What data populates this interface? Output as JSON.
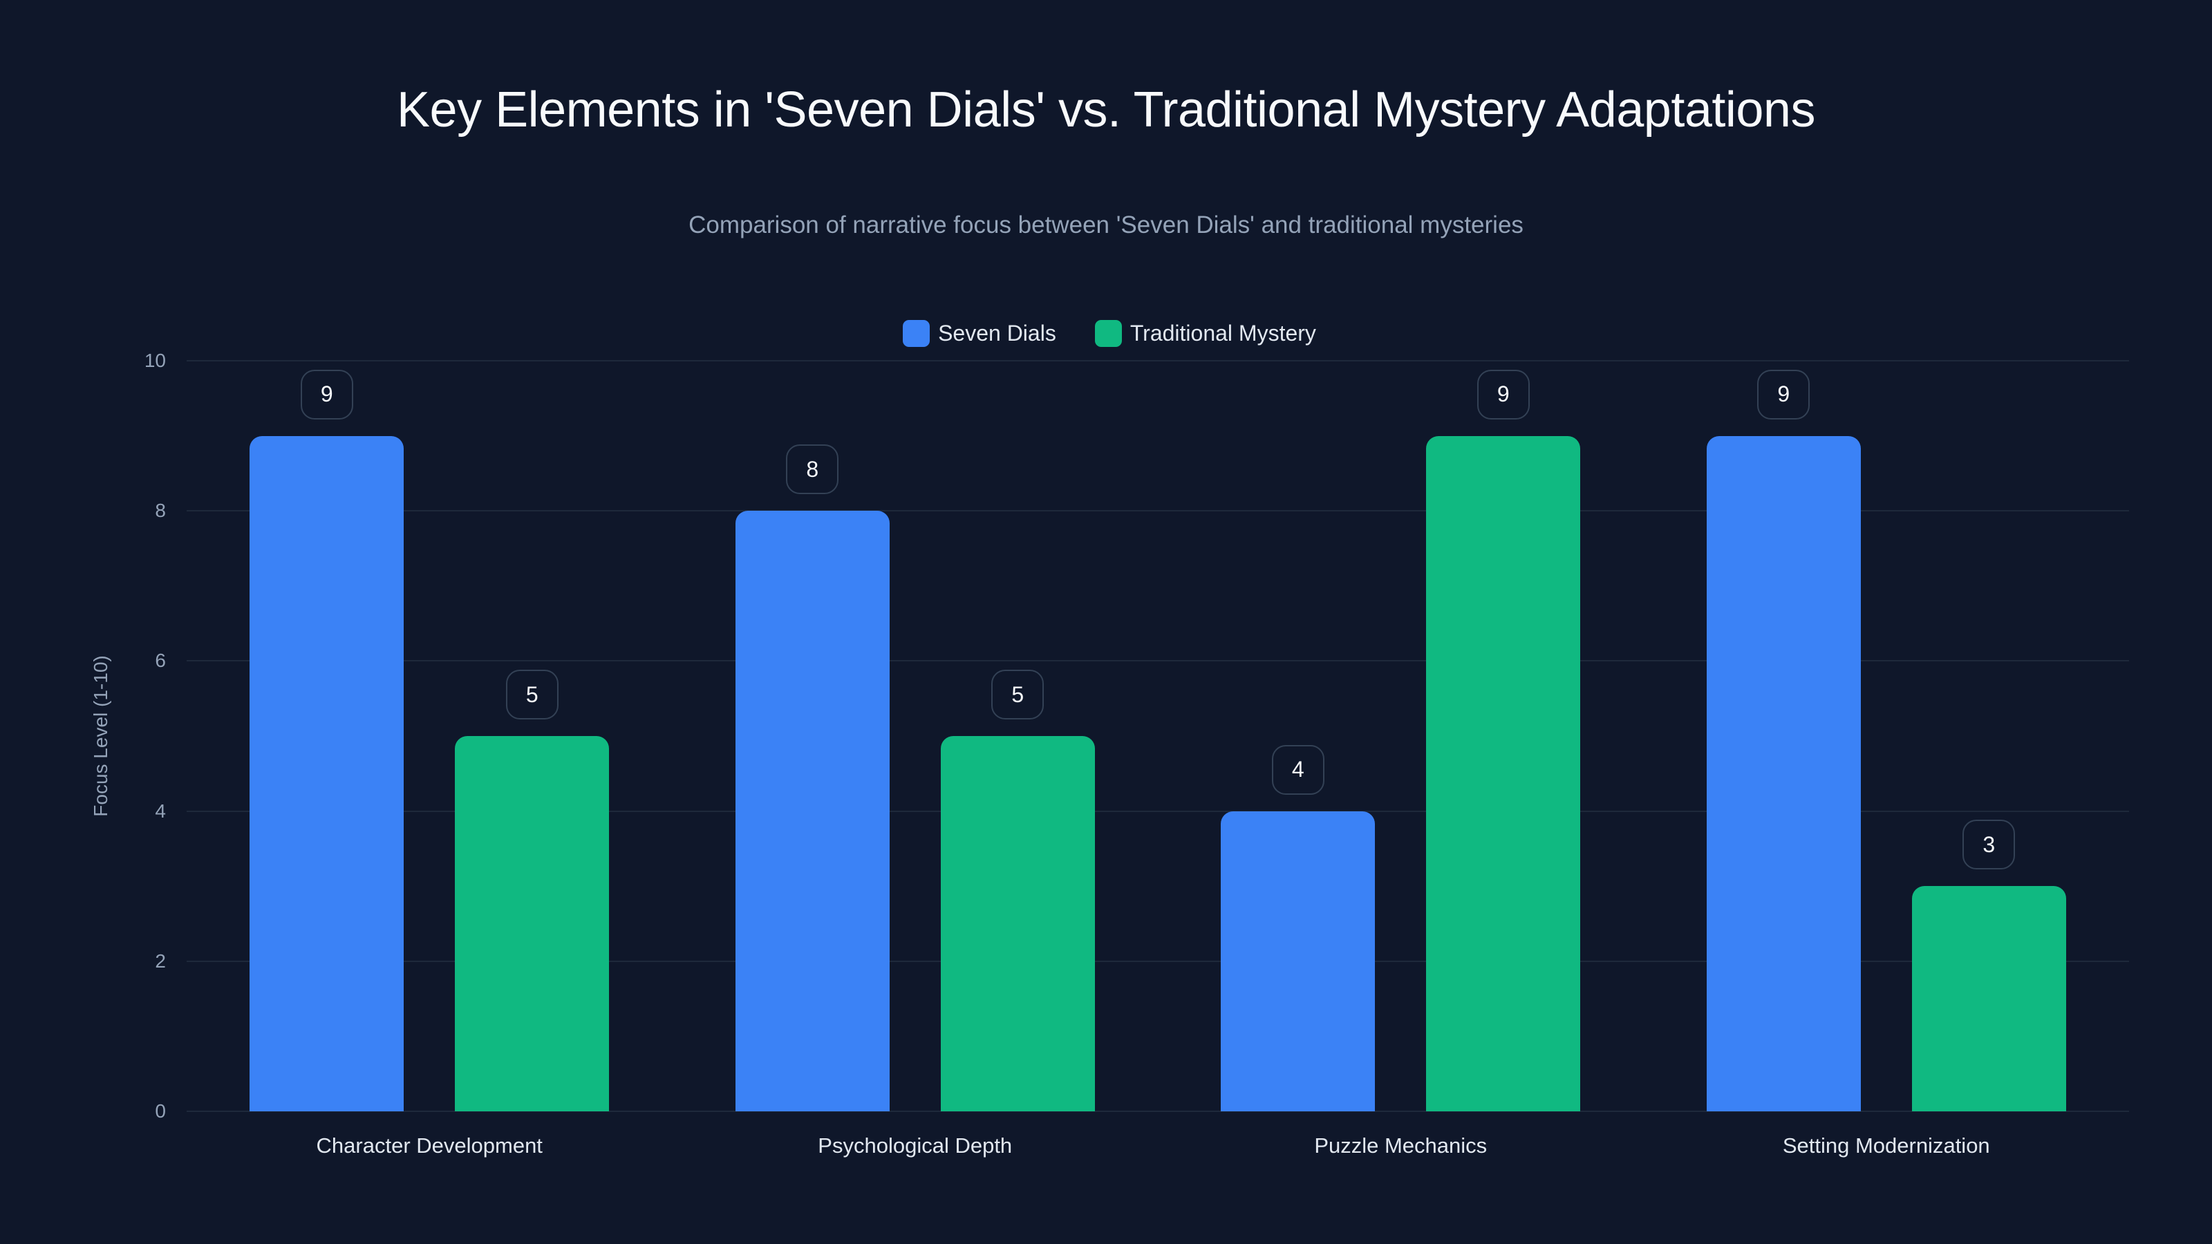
{
  "header": {
    "title": "Key Elements in 'Seven Dials' vs. Traditional Mystery Adaptations",
    "subtitle": "Comparison of narrative focus between 'Seven Dials' and traditional mysteries"
  },
  "legend": [
    {
      "label": "Seven Dials",
      "color": "#3b82f6"
    },
    {
      "label": "Traditional Mystery",
      "color": "#10b981"
    }
  ],
  "axes": {
    "ylabel": "Focus Level (1-10)",
    "yticks": [
      "0",
      "2",
      "4",
      "6",
      "8",
      "10"
    ],
    "xticks": [
      "Character Development",
      "Psychological Depth",
      "Puzzle Mechanics",
      "Setting Modernization"
    ]
  },
  "chart_data": {
    "type": "bar",
    "title": "Key Elements in 'Seven Dials' vs. Traditional Mystery Adaptations",
    "subtitle": "Comparison of narrative focus between 'Seven Dials' and traditional mysteries",
    "categories": [
      "Character Development",
      "Psychological Depth",
      "Puzzle Mechanics",
      "Setting Modernization"
    ],
    "series": [
      {
        "name": "Seven Dials",
        "color": "#3b82f6",
        "values": [
          9,
          8,
          4,
          9
        ]
      },
      {
        "name": "Traditional Mystery",
        "color": "#10b981",
        "values": [
          5,
          5,
          9,
          3
        ]
      }
    ],
    "xlabel": "",
    "ylabel": "Focus Level (1-10)",
    "ylim": [
      0,
      10
    ],
    "yticks": [
      0,
      2,
      4,
      6,
      8,
      10
    ],
    "grid": true,
    "legend_position": "top-center",
    "data_labels": true
  }
}
